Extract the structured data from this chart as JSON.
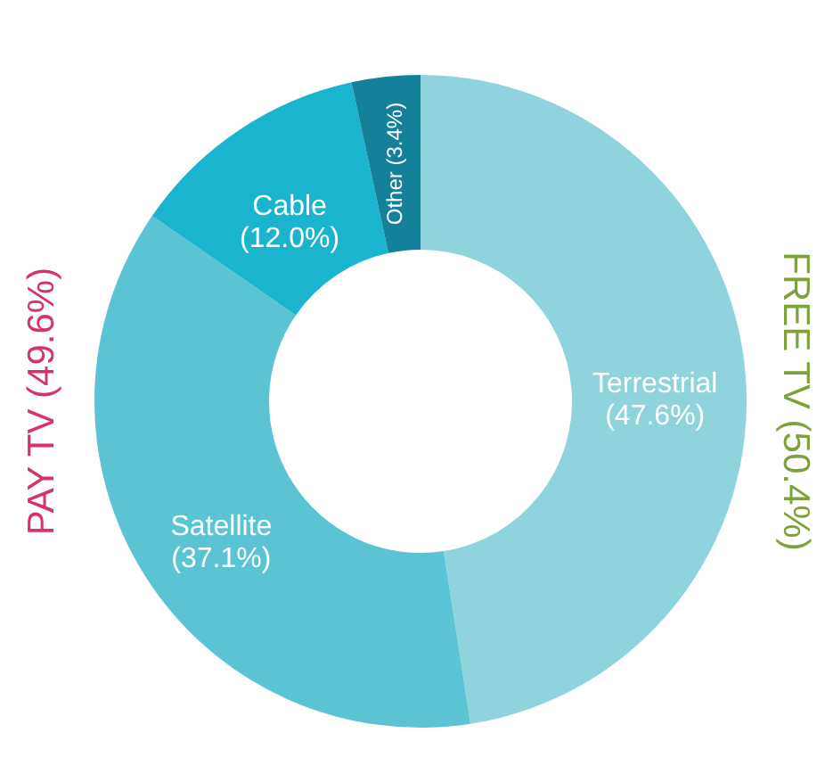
{
  "chart_data": {
    "type": "donut",
    "categories": [
      "Terrestrial",
      "Satellite",
      "Cable",
      "Other"
    ],
    "values": [
      47.6,
      37.1,
      12.0,
      3.4
    ],
    "value_labels": [
      "(47.6%)",
      "(37.1%)",
      "(12.0%)",
      "(3.4%)"
    ],
    "colors": [
      "#8fd3dc",
      "#5bc4d4",
      "#1ab4cf",
      "#13819a"
    ],
    "annotations": [
      "FREE TV (50.4%)",
      "PAY TV (49.6%)"
    ]
  }
}
